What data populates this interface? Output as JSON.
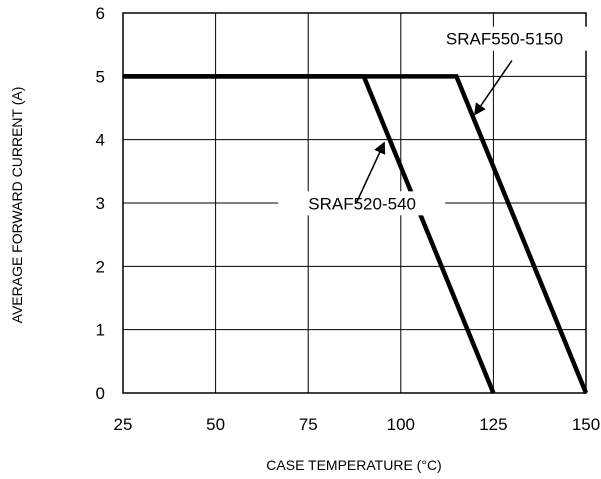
{
  "chart_data": {
    "type": "line",
    "xlabel": "CASE TEMPERATURE (°C)",
    "ylabel": "AVERAGE FORWARD CURRENT (A)",
    "xlim": [
      25,
      150
    ],
    "ylim": [
      0,
      6
    ],
    "x_ticks": [
      25,
      50,
      75,
      100,
      125,
      150
    ],
    "y_ticks": [
      0,
      1,
      2,
      3,
      4,
      5,
      6
    ],
    "grid": true,
    "series": [
      {
        "name": "SRAF520-540",
        "x": [
          25,
          90,
          125
        ],
        "y": [
          5,
          5,
          0
        ]
      },
      {
        "name": "SRAF550-5150",
        "x": [
          25,
          115,
          150
        ],
        "y": [
          5,
          5,
          0
        ]
      }
    ]
  }
}
